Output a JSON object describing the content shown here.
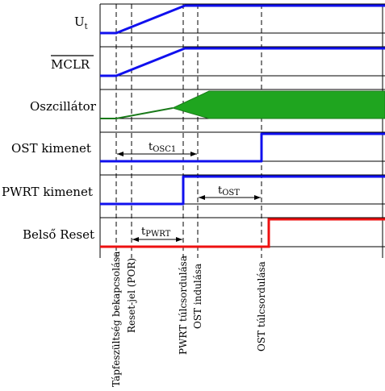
{
  "signals": {
    "ut": {
      "main": "U",
      "sub": "t"
    },
    "mclr": "MCLR",
    "oscillator": "Oszcillátor",
    "ost_out": "OST kimenet",
    "pwrt_out": "PWRT kimenet",
    "internal_reset": "Belső Reset"
  },
  "intervals": {
    "tosc1": {
      "main": "t",
      "sub": "OSC1"
    },
    "tost": {
      "main": "t",
      "sub": "OST"
    },
    "tpwrt": {
      "main": "t",
      "sub": "PWRT"
    }
  },
  "events": {
    "power_on": "Tápfeszültség bekapcsolása",
    "reset_por": "Reset-jel (POR)",
    "pwrt_overflow": "PWRT túlcsordulása",
    "ost_start": "OST indulása",
    "ost_overflow": "OST túlcsordulása"
  },
  "colors": {
    "signal": "#1010ee",
    "reset": "#ee1010",
    "oscillator": "#1a7a1a",
    "oscillator_fill": "#1fa51f"
  }
}
